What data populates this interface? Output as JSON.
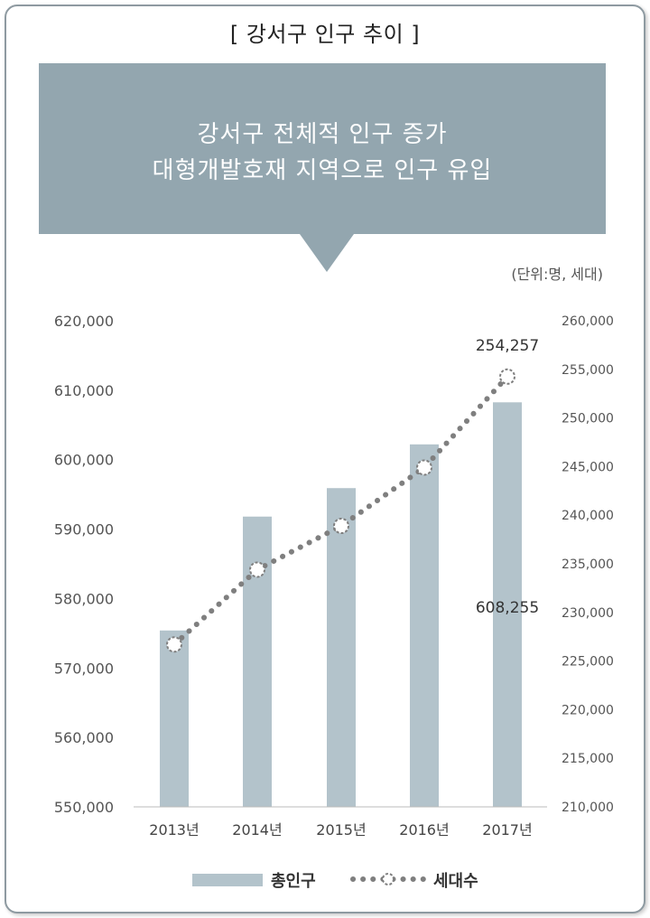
{
  "title": "[ 강서구 인구 추이 ]",
  "callout": {
    "line1": "강서구 전체적 인구 증가",
    "line2": "대형개발호재 지역으로 인구 유입"
  },
  "unit_note": "(단위:명, 세대)",
  "colors": {
    "callout": "#93a6af",
    "bars": "#b3c3cb",
    "households_line": "#7f7f7f"
  },
  "chart_data": {
    "type": "bar",
    "categories": [
      "2013년",
      "2014년",
      "2015년",
      "2016년",
      "2017년"
    ],
    "series": [
      {
        "name": "총인구",
        "type": "bar",
        "axis": "left",
        "values": [
          575400,
          591800,
          595900,
          602200,
          608255
        ]
      },
      {
        "name": "세대수",
        "type": "line",
        "style": "dotted",
        "axis": "right",
        "values": [
          226700,
          234400,
          238900,
          244900,
          254257
        ]
      }
    ],
    "ylim_left": [
      550000,
      620000
    ],
    "yticks_left": [
      "550,000",
      "560,000",
      "570,000",
      "580,000",
      "590,000",
      "600,000",
      "610,000",
      "620,000"
    ],
    "ylim_right": [
      210000,
      260000
    ],
    "yticks_right": [
      "210,000",
      "215,000",
      "220,000",
      "225,000",
      "230,000",
      "235,000",
      "240,000",
      "245,000",
      "250,000",
      "255,000",
      "260,000"
    ],
    "annotations": [
      "254,257",
      "608,255"
    ],
    "legend": [
      "총인구",
      "세대수"
    ],
    "legend_position": "bottom",
    "grid": false
  }
}
